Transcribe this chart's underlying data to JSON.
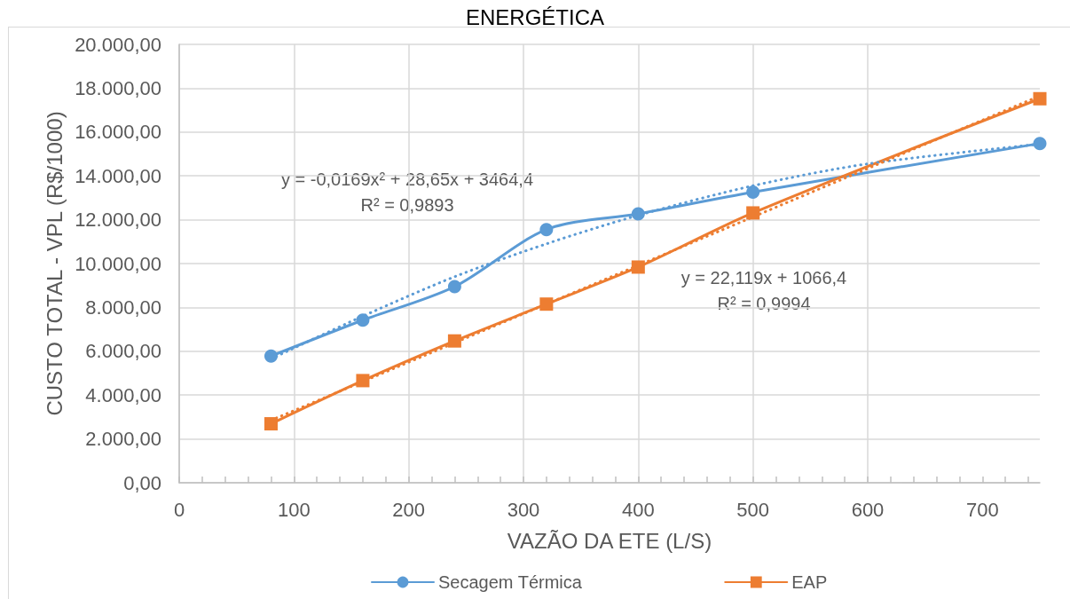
{
  "chart_data": {
    "type": "line",
    "title": "ENERGÉTICA",
    "xlabel": "VAZÃO DA ETE (L/S)",
    "ylabel": "CUSTO TOTAL - VPL (R$/1000)",
    "x": [
      80,
      160,
      240,
      320,
      400,
      500,
      750
    ],
    "series": [
      {
        "name": "Secagem Térmica",
        "color": "#5b9bd5",
        "marker": "circle",
        "values": [
          5780,
          7420,
          8950,
          11550,
          12270,
          13260,
          15480
        ]
      },
      {
        "name": "EAP",
        "color": "#ed7d31",
        "marker": "square",
        "values": [
          2690,
          4660,
          6470,
          8150,
          9840,
          12310,
          17520
        ]
      },
      {
        "color": "#5b9bd5",
        "marker": "none",
        "line_style": "dotted",
        "x": [
          80,
          160,
          240,
          320,
          400,
          500,
          600,
          750
        ],
        "values": [
          5650,
          7600,
          9400,
          10900,
          12200,
          13550,
          14550,
          15450
        ]
      },
      {
        "color": "#ed7d31",
        "marker": "none",
        "line_style": "dotted",
        "x": [
          80,
          750
        ],
        "values": [
          2850,
          17650
        ]
      }
    ],
    "annotations": [
      "y = -0,0169x² + 28,65x + 3464,4",
      "R² = 0,9893",
      "y = 22,119x + 1066,4",
      "R² = 0,9994"
    ],
    "xlim": [
      0,
      750
    ],
    "xticks": [
      0,
      {
        "value": 20,
        "label": null
      },
      {
        "value": 40,
        "label": null
      },
      {
        "value": 60,
        "label": null
      },
      {
        "value": 80,
        "label": null
      },
      100,
      {
        "value": 120,
        "label": null
      },
      {
        "value": 140,
        "label": null
      },
      {
        "value": 160,
        "label": null
      },
      {
        "value": 180,
        "label": null
      },
      200,
      {
        "value": 220,
        "label": null
      },
      {
        "value": 240,
        "label": null
      },
      {
        "value": 260,
        "label": null
      },
      {
        "value": 280,
        "label": null
      },
      300,
      {
        "value": 320,
        "label": null
      },
      {
        "value": 340,
        "label": null
      },
      {
        "value": 360,
        "label": null
      },
      {
        "value": 380,
        "label": null
      },
      400,
      {
        "value": 420,
        "label": null
      },
      {
        "value": 440,
        "label": null
      },
      {
        "value": 460,
        "label": null
      },
      {
        "value": 480,
        "label": null
      },
      500,
      {
        "value": 520,
        "label": null
      },
      {
        "value": 540,
        "label": null
      },
      {
        "value": 560,
        "label": null
      },
      {
        "value": 580,
        "label": null
      },
      600,
      {
        "value": 620,
        "label": null
      },
      {
        "value": 640,
        "label": null
      },
      {
        "value": 660,
        "label": null
      },
      {
        "value": 680,
        "label": null
      },
      700,
      {
        "value": 720,
        "label": null
      },
      {
        "value": 740,
        "label": null
      }
    ],
    "ylim": [
      0,
      20000
    ],
    "yticks": [
      {
        "value": 0,
        "label": "0,00"
      },
      {
        "value": 2000,
        "label": "2.000,00"
      },
      {
        "value": 4000,
        "label": "4.000,00"
      },
      {
        "value": 6000,
        "label": "6.000,00"
      },
      {
        "value": 8000,
        "label": "8.000,00"
      },
      {
        "value": 10000,
        "label": "10.000,00"
      },
      {
        "value": 12000,
        "label": "12.000,00"
      },
      {
        "value": 14000,
        "label": "14.000,00"
      },
      {
        "value": 16000,
        "label": "16.000,00"
      },
      {
        "value": 18000,
        "label": "18.000,00"
      },
      {
        "value": 20000,
        "label": "20.000,00"
      }
    ],
    "grid": true,
    "legend": "bottom"
  }
}
